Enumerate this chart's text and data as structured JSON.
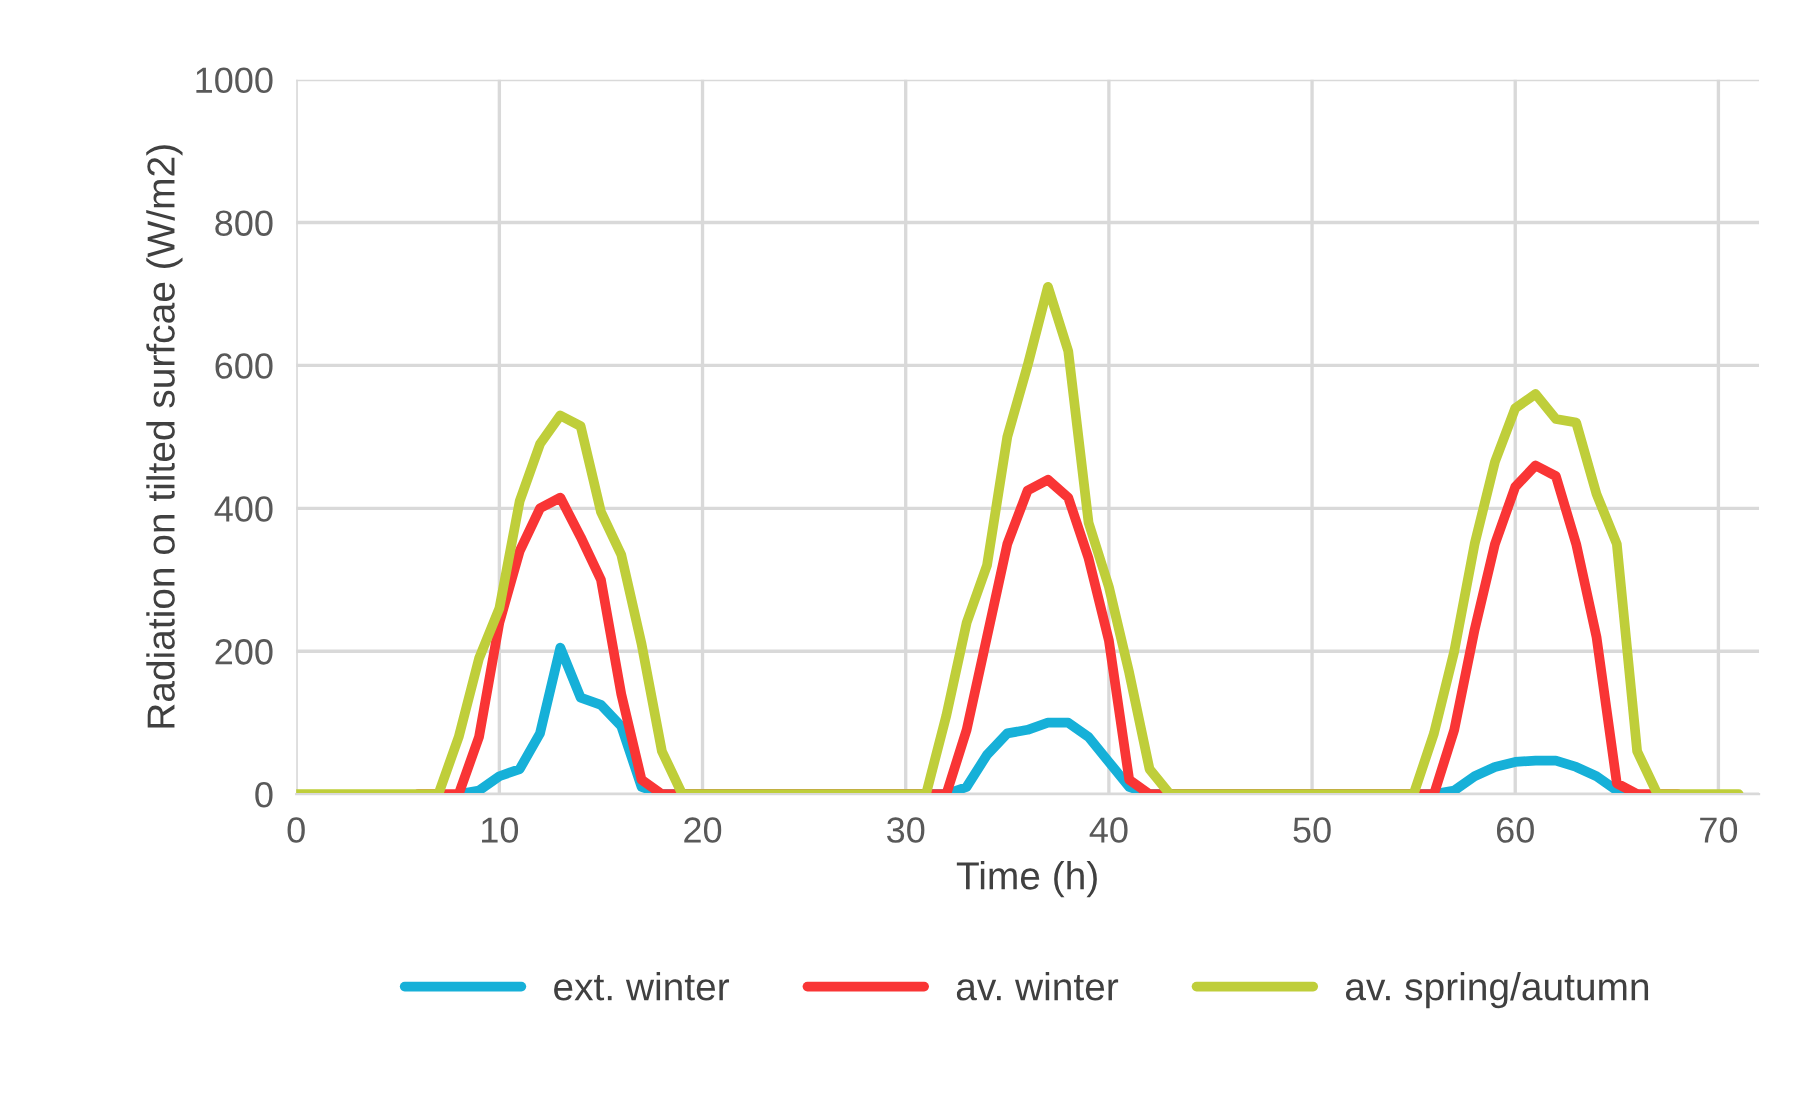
{
  "chart_data": {
    "type": "line",
    "xlabel": "Time (h)",
    "ylabel": "Radiation on tilted surfcae (W/m2)",
    "x": [
      0,
      1,
      2,
      3,
      4,
      5,
      6,
      7,
      8,
      9,
      10,
      11,
      12,
      13,
      14,
      15,
      16,
      17,
      18,
      19,
      20,
      21,
      22,
      23,
      24,
      25,
      26,
      27,
      28,
      29,
      30,
      31,
      32,
      33,
      34,
      35,
      36,
      37,
      38,
      39,
      40,
      41,
      42,
      43,
      44,
      45,
      46,
      47,
      48,
      49,
      50,
      51,
      52,
      53,
      54,
      55,
      56,
      57,
      58,
      59,
      60,
      61,
      62,
      63,
      64,
      65,
      66,
      67,
      68,
      69,
      70,
      71
    ],
    "series": [
      {
        "name": "ext. winter",
        "color": "#16b0d8",
        "values": [
          null,
          null,
          null,
          null,
          null,
          null,
          null,
          null,
          0,
          5,
          25,
          35,
          85,
          205,
          135,
          125,
          95,
          10,
          0,
          null,
          null,
          null,
          null,
          null,
          null,
          null,
          null,
          null,
          null,
          null,
          null,
          null,
          0,
          10,
          55,
          85,
          90,
          100,
          100,
          80,
          45,
          10,
          0,
          null,
          null,
          null,
          null,
          null,
          null,
          null,
          null,
          null,
          null,
          null,
          null,
          null,
          0,
          5,
          25,
          38,
          45,
          47,
          47,
          38,
          25,
          5,
          0,
          null,
          null,
          null,
          null,
          null
        ]
      },
      {
        "name": "av. winter",
        "color": "#f93535",
        "values": [
          null,
          null,
          null,
          null,
          null,
          null,
          0,
          0,
          0,
          80,
          240,
          340,
          400,
          415,
          360,
          300,
          140,
          20,
          0,
          0,
          0,
          0,
          0,
          0,
          0,
          0,
          0,
          0,
          0,
          0,
          0,
          0,
          0,
          90,
          220,
          350,
          425,
          440,
          415,
          330,
          215,
          20,
          0,
          0,
          0,
          0,
          0,
          0,
          0,
          0,
          0,
          0,
          0,
          0,
          0,
          0,
          0,
          90,
          230,
          350,
          430,
          460,
          445,
          350,
          220,
          15,
          0,
          0,
          0,
          null,
          null,
          null
        ]
      },
      {
        "name": "av. spring/autumn",
        "color": "#bfce3a",
        "values": [
          0,
          0,
          0,
          0,
          0,
          0,
          0,
          0,
          80,
          190,
          260,
          410,
          490,
          530,
          515,
          395,
          335,
          210,
          60,
          0,
          0,
          0,
          0,
          0,
          0,
          0,
          0,
          0,
          0,
          0,
          0,
          0,
          110,
          240,
          320,
          500,
          600,
          710,
          620,
          380,
          290,
          170,
          35,
          0,
          0,
          0,
          0,
          0,
          0,
          0,
          0,
          0,
          0,
          0,
          0,
          0,
          85,
          200,
          350,
          465,
          540,
          560,
          525,
          520,
          420,
          350,
          60,
          0,
          0,
          0,
          0,
          0
        ]
      }
    ],
    "xlim": [
      0,
      72
    ],
    "xticks": [
      0,
      10,
      20,
      30,
      40,
      50,
      60,
      70
    ],
    "ylim": [
      0,
      1000
    ],
    "yticks": [
      0,
      200,
      400,
      600,
      800,
      1000
    ],
    "grid": true,
    "legend": "bottom",
    "marker": "none",
    "line_style": "solid"
  }
}
